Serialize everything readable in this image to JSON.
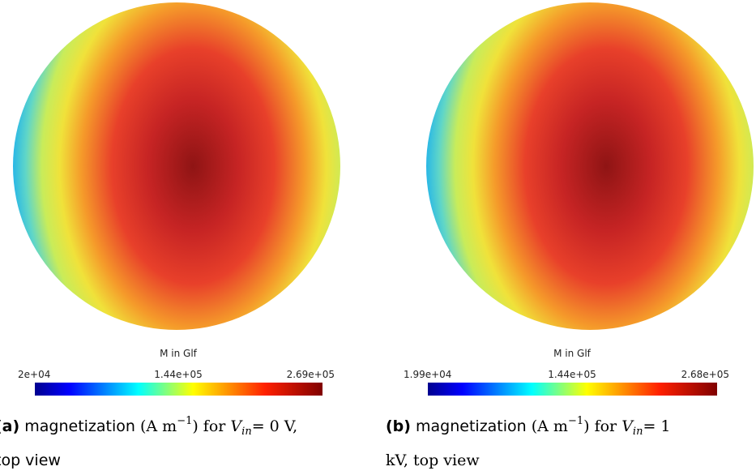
{
  "panels": [
    {
      "colorbar": {
        "title": "M in Glf",
        "min_label": "2e+04",
        "mid_label": "1.44e+05",
        "max_label": "2.69e+05"
      },
      "caption": {
        "label": "(a)",
        "text": "magnetization",
        "unit": "(A m",
        "unit_exp": "−1",
        "mid": ") for",
        "var": "V",
        "var_sub": "in",
        "rest": "= 0 V,",
        "line2": "top view"
      }
    },
    {
      "colorbar": {
        "title": "M in Glf",
        "min_label": "1.99e+04",
        "mid_label": "1.44e+05",
        "max_label": "2.68e+05"
      },
      "caption": {
        "label": "(b)",
        "text": "magnetization",
        "unit": "(A m",
        "unit_exp": "−1",
        "mid": ") for",
        "var": "V",
        "var_sub": "in",
        "rest": "= 1",
        "line2": "kV, top view"
      }
    }
  ]
}
